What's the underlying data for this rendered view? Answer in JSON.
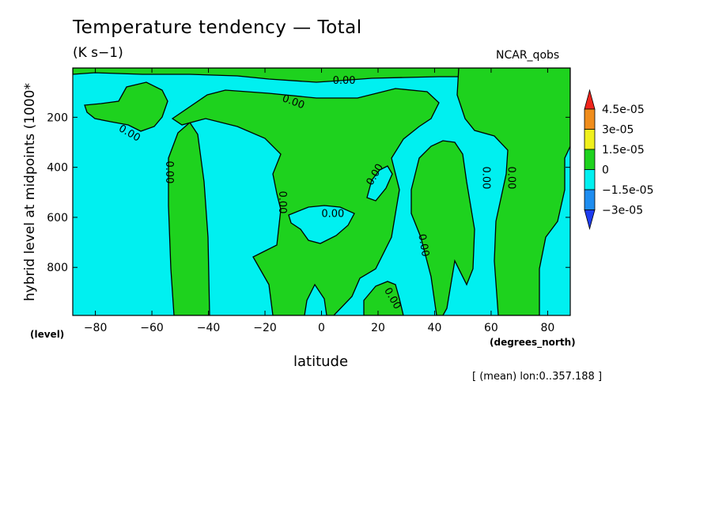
{
  "chart_data": {
    "type": "contour",
    "title": "Temperature tendency — Total",
    "units": "(K s−1)",
    "dataset": "NCAR_qobs",
    "xlabel": "latitude",
    "xunits": "(degrees_north)",
    "ylabel": "hybrid level at midpoints (1000*",
    "yunits": "(level)",
    "footnote": "[ (mean) lon:0..357.188 ]",
    "xlim": [
      -88,
      88
    ],
    "ylim": [
      992,
      3
    ],
    "x_ticks": [
      -80,
      -60,
      -40,
      -20,
      0,
      20,
      40,
      60,
      80
    ],
    "y_ticks": [
      200,
      400,
      600,
      800
    ],
    "contour_level": 0,
    "contour_label": "0.00",
    "contour_label_positions": [
      {
        "x": -68,
        "y": 265
      },
      {
        "x": -54,
        "y": 420
      },
      {
        "x": -14,
        "y": 540
      },
      {
        "x": -10,
        "y": 140
      },
      {
        "x": 4,
        "y": 588
      },
      {
        "x": 8,
        "y": 55
      },
      {
        "x": 19,
        "y": 430
      },
      {
        "x": 25,
        "y": 925
      },
      {
        "x": 36,
        "y": 712
      },
      {
        "x": 58,
        "y": 442
      },
      {
        "x": 67,
        "y": 442
      }
    ],
    "legend": {
      "levels": [
        "4.5e-05",
        "3e-05",
        "1.5e-05",
        "0",
        "−1.5e-05",
        "−3e-05"
      ],
      "colors": [
        "#f0251c",
        "#f08d1b",
        "#f0f01c",
        "#1ed21e",
        "#00f0f0",
        "#1e8df0",
        "#1e3cf0"
      ]
    },
    "fill_colors": {
      "positive": "#1ed21e",
      "negative": "#00f0f0"
    }
  }
}
